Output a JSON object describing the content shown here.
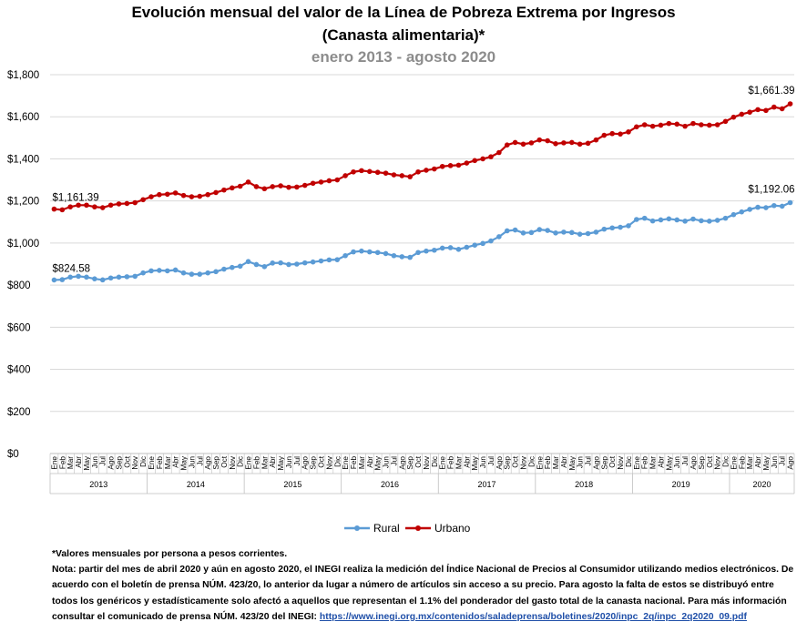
{
  "chart_data": {
    "type": "line",
    "title": "Evolución mensual del valor de la Línea de Pobreza Extrema por Ingresos",
    "title_line2": "(Canasta alimentaria)*",
    "subtitle": "enero 2013 - agosto 2020",
    "ylim": [
      0,
      1800
    ],
    "yticks": [
      "$0",
      "$200",
      "$400",
      "$600",
      "$800",
      "$1,000",
      "$1,200",
      "$1,400",
      "$1,600",
      "$1,800"
    ],
    "ytick_values": [
      0,
      200,
      400,
      600,
      800,
      1000,
      1200,
      1400,
      1600,
      1800
    ],
    "month_labels": [
      "Ene",
      "Feb",
      "Mar",
      "Abr",
      "May",
      "Jun",
      "Jul",
      "Ago",
      "Sep",
      "Oct",
      "Nov",
      "Dic"
    ],
    "years": [
      "2013",
      "2014",
      "2015",
      "2016",
      "2017",
      "2018",
      "2019",
      "2020"
    ],
    "last_year_months": 8,
    "series": [
      {
        "name": "Rural",
        "color": "#5b9bd5",
        "start_label": "$824.58",
        "end_label": "$1,192.06",
        "values": [
          824.58,
          826,
          838,
          842,
          838,
          830,
          825,
          834,
          838,
          840,
          842,
          858,
          868,
          870,
          868,
          872,
          858,
          852,
          852,
          858,
          864,
          876,
          884,
          890,
          912,
          898,
          888,
          905,
          906,
          898,
          900,
          906,
          910,
          915,
          920,
          921,
          940,
          958,
          962,
          958,
          955,
          950,
          940,
          935,
          932,
          955,
          962,
          966,
          976,
          978,
          970,
          980,
          990,
          998,
          1010,
          1030,
          1058,
          1062,
          1048,
          1050,
          1064,
          1060,
          1048,
          1052,
          1050,
          1042,
          1045,
          1052,
          1066,
          1072,
          1075,
          1082,
          1112,
          1118,
          1105,
          1110,
          1115,
          1110,
          1104,
          1114,
          1106,
          1104,
          1108,
          1118,
          1135,
          1148,
          1160,
          1170,
          1168,
          1178,
          1175,
          1192.06
        ]
      },
      {
        "name": "Urbano",
        "color": "#c00000",
        "start_label": "$1,161.39",
        "end_label": "$1,661.39",
        "values": [
          1161.39,
          1158,
          1172,
          1180,
          1180,
          1172,
          1168,
          1180,
          1186,
          1188,
          1192,
          1206,
          1220,
          1230,
          1232,
          1238,
          1226,
          1220,
          1222,
          1230,
          1240,
          1252,
          1262,
          1270,
          1290,
          1268,
          1258,
          1268,
          1272,
          1265,
          1266,
          1274,
          1284,
          1290,
          1296,
          1300,
          1320,
          1338,
          1344,
          1340,
          1336,
          1332,
          1324,
          1320,
          1315,
          1338,
          1346,
          1352,
          1364,
          1368,
          1370,
          1380,
          1392,
          1400,
          1410,
          1430,
          1466,
          1478,
          1470,
          1476,
          1490,
          1486,
          1472,
          1476,
          1478,
          1470,
          1474,
          1490,
          1512,
          1520,
          1518,
          1528,
          1552,
          1562,
          1555,
          1560,
          1568,
          1565,
          1555,
          1568,
          1562,
          1560,
          1562,
          1578,
          1598,
          1612,
          1622,
          1634,
          1630,
          1646,
          1638,
          1661.39
        ]
      }
    ]
  },
  "notes": {
    "line1": "*Valores mensuales por persona a pesos corrientes.",
    "line2": "Nota: partir del mes de abril 2020 y aún en agosto 2020, el INEGI realiza la medición del Índice Nacional de Precios al Consumidor utilizando medios electrónicos. De acuerdo con el boletín de prensa NÚM. 423/20, lo anterior da lugar a número de artículos sin acceso a su precio. Para agosto la falta de estos se distribuyó entre todos los genéricos y estadísticamente solo afectó a aquellos que representan el 1.1% del ponderador del gasto total de la canasta nacional. Para más información consultar el comunicado de prensa NÚM. 423/20 del INEGI: ",
    "link": "https://www.inegi.org.mx/contenidos/saladeprensa/boletines/2020/inpc_2q/inpc_2q2020_09.pdf"
  }
}
